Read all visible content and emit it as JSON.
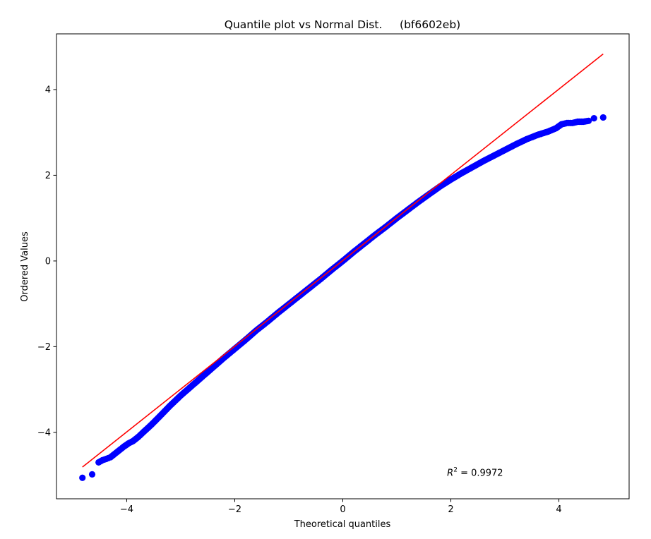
{
  "chart_data": {
    "type": "scatter",
    "title": "Quantile plot vs Normal Dist.     (bf6602eb)",
    "xlabel": "Theoretical quantiles",
    "ylabel": "Ordered Values",
    "xlim": [
      -5.3,
      5.3
    ],
    "ylim": [
      -5.55,
      5.3
    ],
    "xticks": [
      -4,
      -2,
      0,
      2,
      4
    ],
    "yticks": [
      -4,
      -2,
      0,
      2,
      4
    ],
    "xtick_labels": [
      "−4",
      "−2",
      "0",
      "2",
      "4"
    ],
    "ytick_labels": [
      "−4",
      "−2",
      "0",
      "2",
      "4"
    ],
    "grid": false,
    "annotation": {
      "text": "R² = 0.9972",
      "prefix": "R",
      "sup": "2",
      "suffix": " = 0.9972",
      "x": 1.93,
      "y": -4.93
    },
    "series": [
      {
        "kind": "points",
        "color": "#0000ff",
        "points": [
          [
            -4.82,
            -5.06
          ],
          [
            -4.64,
            -4.98
          ],
          [
            -4.52,
            -4.7
          ],
          [
            -4.45,
            -4.65
          ],
          [
            -4.38,
            -4.62
          ],
          [
            -4.3,
            -4.58
          ],
          [
            -4.22,
            -4.5
          ],
          [
            -4.14,
            -4.42
          ],
          [
            -4.05,
            -4.33
          ],
          [
            -3.97,
            -4.26
          ],
          [
            -3.88,
            -4.2
          ],
          [
            -3.78,
            -4.1
          ],
          [
            -3.68,
            -3.98
          ],
          [
            -3.55,
            -3.83
          ],
          [
            -3.4,
            -3.64
          ],
          [
            -3.2,
            -3.38
          ],
          [
            -3.0,
            -3.14
          ],
          [
            -2.8,
            -2.92
          ],
          [
            -2.6,
            -2.7
          ],
          [
            -2.4,
            -2.48
          ],
          [
            -2.2,
            -2.26
          ],
          [
            -2.0,
            -2.05
          ],
          [
            -1.8,
            -1.84
          ],
          [
            -1.6,
            -1.62
          ],
          [
            -1.4,
            -1.42
          ],
          [
            -1.2,
            -1.21
          ],
          [
            -1.0,
            -1.01
          ],
          [
            -0.8,
            -0.81
          ],
          [
            -0.6,
            -0.61
          ],
          [
            -0.4,
            -0.41
          ],
          [
            -0.2,
            -0.2
          ],
          [
            0.0,
            0.0
          ],
          [
            0.2,
            0.21
          ],
          [
            0.4,
            0.41
          ],
          [
            0.6,
            0.61
          ],
          [
            0.8,
            0.8
          ],
          [
            1.0,
            1.0
          ],
          [
            1.2,
            1.19
          ],
          [
            1.4,
            1.38
          ],
          [
            1.6,
            1.56
          ],
          [
            1.8,
            1.74
          ],
          [
            2.0,
            1.9
          ],
          [
            2.2,
            2.05
          ],
          [
            2.4,
            2.19
          ],
          [
            2.6,
            2.33
          ],
          [
            2.8,
            2.46
          ],
          [
            3.0,
            2.59
          ],
          [
            3.2,
            2.72
          ],
          [
            3.4,
            2.84
          ],
          [
            3.6,
            2.94
          ],
          [
            3.8,
            3.02
          ],
          [
            3.95,
            3.1
          ],
          [
            4.05,
            3.19
          ],
          [
            4.15,
            3.22
          ],
          [
            4.25,
            3.22
          ],
          [
            4.35,
            3.25
          ],
          [
            4.45,
            3.25
          ],
          [
            4.55,
            3.27
          ],
          [
            4.65,
            3.33
          ],
          [
            4.82,
            3.35
          ]
        ]
      },
      {
        "kind": "line",
        "color": "#ff0000",
        "points": [
          [
            -4.82,
            -4.81
          ],
          [
            4.82,
            4.83
          ]
        ]
      }
    ]
  }
}
